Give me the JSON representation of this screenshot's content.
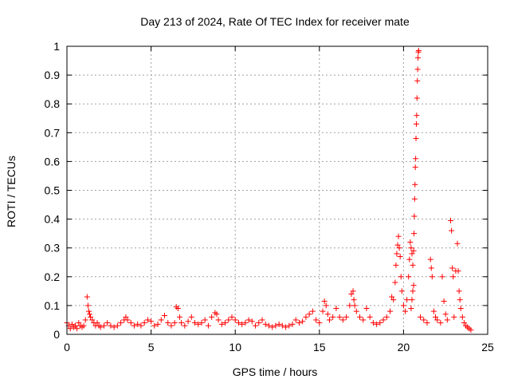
{
  "chart_data": {
    "type": "scatter",
    "title": "Day 213 of 2024, Rate Of TEC Index for receiver mate",
    "xlabel": "GPS time / hours",
    "ylabel": "ROTI / TECUs",
    "xlim": [
      0,
      25
    ],
    "ylim": [
      0,
      1
    ],
    "xticks": [
      0,
      5,
      10,
      15,
      20,
      25
    ],
    "yticks": [
      0,
      0.1,
      0.2,
      0.3,
      0.4,
      0.5,
      0.6,
      0.7,
      0.8,
      0.9,
      1
    ],
    "xtick_labels": [
      "0",
      "5",
      "10",
      "15",
      "20",
      "25"
    ],
    "ytick_labels": [
      "0",
      "0.1",
      "0.2",
      "0.3",
      "0.4",
      "0.5",
      "0.6",
      "0.7",
      "0.8",
      "0.9",
      "1"
    ],
    "grid": true,
    "marker": "+",
    "color": "#ff0000",
    "series": [
      {
        "name": "ROTI",
        "points": [
          [
            0.0,
            0.04
          ],
          [
            0.1,
            0.03
          ],
          [
            0.2,
            0.02
          ],
          [
            0.3,
            0.035
          ],
          [
            0.4,
            0.025
          ],
          [
            0.5,
            0.03
          ],
          [
            0.6,
            0.02
          ],
          [
            0.7,
            0.04
          ],
          [
            0.8,
            0.03
          ],
          [
            0.9,
            0.025
          ],
          [
            1.0,
            0.03
          ],
          [
            1.1,
            0.05
          ],
          [
            1.2,
            0.13
          ],
          [
            1.25,
            0.1
          ],
          [
            1.3,
            0.08
          ],
          [
            1.35,
            0.07
          ],
          [
            1.4,
            0.06
          ],
          [
            1.5,
            0.05
          ],
          [
            1.6,
            0.04
          ],
          [
            1.7,
            0.03
          ],
          [
            1.8,
            0.04
          ],
          [
            1.9,
            0.03
          ],
          [
            2.0,
            0.025
          ],
          [
            2.2,
            0.03
          ],
          [
            2.4,
            0.04
          ],
          [
            2.6,
            0.03
          ],
          [
            2.8,
            0.025
          ],
          [
            3.0,
            0.03
          ],
          [
            3.2,
            0.04
          ],
          [
            3.4,
            0.05
          ],
          [
            3.5,
            0.06
          ],
          [
            3.6,
            0.05
          ],
          [
            3.8,
            0.04
          ],
          [
            4.0,
            0.03
          ],
          [
            4.2,
            0.035
          ],
          [
            4.4,
            0.03
          ],
          [
            4.6,
            0.04
          ],
          [
            4.8,
            0.05
          ],
          [
            5.0,
            0.045
          ],
          [
            5.2,
            0.03
          ],
          [
            5.4,
            0.035
          ],
          [
            5.6,
            0.05
          ],
          [
            5.8,
            0.065
          ],
          [
            6.0,
            0.04
          ],
          [
            6.2,
            0.03
          ],
          [
            6.4,
            0.04
          ],
          [
            6.5,
            0.095
          ],
          [
            6.6,
            0.09
          ],
          [
            6.7,
            0.06
          ],
          [
            6.8,
            0.04
          ],
          [
            7.0,
            0.03
          ],
          [
            7.2,
            0.045
          ],
          [
            7.4,
            0.06
          ],
          [
            7.6,
            0.04
          ],
          [
            7.8,
            0.035
          ],
          [
            8.0,
            0.04
          ],
          [
            8.2,
            0.05
          ],
          [
            8.4,
            0.03
          ],
          [
            8.6,
            0.06
          ],
          [
            8.8,
            0.075
          ],
          [
            8.9,
            0.07
          ],
          [
            9.0,
            0.05
          ],
          [
            9.2,
            0.035
          ],
          [
            9.4,
            0.04
          ],
          [
            9.6,
            0.05
          ],
          [
            9.8,
            0.06
          ],
          [
            10.0,
            0.05
          ],
          [
            10.2,
            0.04
          ],
          [
            10.4,
            0.035
          ],
          [
            10.6,
            0.04
          ],
          [
            10.8,
            0.05
          ],
          [
            11.0,
            0.045
          ],
          [
            11.2,
            0.03
          ],
          [
            11.4,
            0.04
          ],
          [
            11.6,
            0.05
          ],
          [
            11.8,
            0.035
          ],
          [
            12.0,
            0.03
          ],
          [
            12.2,
            0.025
          ],
          [
            12.4,
            0.03
          ],
          [
            12.6,
            0.035
          ],
          [
            12.8,
            0.03
          ],
          [
            13.0,
            0.025
          ],
          [
            13.2,
            0.03
          ],
          [
            13.4,
            0.035
          ],
          [
            13.6,
            0.05
          ],
          [
            13.8,
            0.04
          ],
          [
            14.0,
            0.045
          ],
          [
            14.2,
            0.06
          ],
          [
            14.4,
            0.07
          ],
          [
            14.6,
            0.08
          ],
          [
            14.8,
            0.05
          ],
          [
            15.0,
            0.04
          ],
          [
            15.2,
            0.08
          ],
          [
            15.3,
            0.115
          ],
          [
            15.4,
            0.1
          ],
          [
            15.5,
            0.07
          ],
          [
            15.6,
            0.05
          ],
          [
            15.8,
            0.06
          ],
          [
            16.0,
            0.09
          ],
          [
            16.2,
            0.06
          ],
          [
            16.4,
            0.05
          ],
          [
            16.6,
            0.06
          ],
          [
            16.8,
            0.1
          ],
          [
            16.9,
            0.14
          ],
          [
            17.0,
            0.15
          ],
          [
            17.05,
            0.12
          ],
          [
            17.1,
            0.1
          ],
          [
            17.2,
            0.08
          ],
          [
            17.4,
            0.06
          ],
          [
            17.6,
            0.05
          ],
          [
            17.8,
            0.09
          ],
          [
            18.0,
            0.06
          ],
          [
            18.2,
            0.04
          ],
          [
            18.4,
            0.035
          ],
          [
            18.6,
            0.04
          ],
          [
            18.8,
            0.05
          ],
          [
            19.0,
            0.06
          ],
          [
            19.2,
            0.08
          ],
          [
            19.3,
            0.13
          ],
          [
            19.4,
            0.12
          ],
          [
            19.5,
            0.18
          ],
          [
            19.55,
            0.24
          ],
          [
            19.6,
            0.28
          ],
          [
            19.65,
            0.31
          ],
          [
            19.7,
            0.34
          ],
          [
            19.75,
            0.3
          ],
          [
            19.8,
            0.27
          ],
          [
            19.85,
            0.2
          ],
          [
            19.9,
            0.15
          ],
          [
            20.0,
            0.1
          ],
          [
            20.1,
            0.08
          ],
          [
            20.2,
            0.12
          ],
          [
            20.3,
            0.2
          ],
          [
            20.35,
            0.26
          ],
          [
            20.4,
            0.32
          ],
          [
            20.45,
            0.3
          ],
          [
            20.5,
            0.28
          ],
          [
            20.55,
            0.24
          ],
          [
            20.6,
            0.29
          ],
          [
            20.62,
            0.35
          ],
          [
            20.64,
            0.41
          ],
          [
            20.66,
            0.47
          ],
          [
            20.68,
            0.52
          ],
          [
            20.7,
            0.58
          ],
          [
            20.72,
            0.61
          ],
          [
            20.74,
            0.68
          ],
          [
            20.76,
            0.73
          ],
          [
            20.78,
            0.76
          ],
          [
            20.8,
            0.82
          ],
          [
            20.82,
            0.88
          ],
          [
            20.84,
            0.92
          ],
          [
            20.86,
            0.96
          ],
          [
            20.88,
            0.98
          ],
          [
            20.9,
            0.985
          ],
          [
            20.6,
            0.17
          ],
          [
            20.55,
            0.15
          ],
          [
            20.5,
            0.12
          ],
          [
            20.45,
            0.09
          ],
          [
            21.0,
            0.06
          ],
          [
            21.2,
            0.05
          ],
          [
            21.4,
            0.04
          ],
          [
            21.6,
            0.26
          ],
          [
            21.65,
            0.23
          ],
          [
            21.7,
            0.2
          ],
          [
            21.8,
            0.08
          ],
          [
            21.9,
            0.06
          ],
          [
            22.0,
            0.05
          ],
          [
            22.2,
            0.04
          ],
          [
            22.3,
            0.2
          ],
          [
            22.4,
            0.115
          ],
          [
            22.5,
            0.07
          ],
          [
            22.6,
            0.05
          ],
          [
            22.8,
            0.395
          ],
          [
            22.85,
            0.36
          ],
          [
            22.9,
            0.23
          ],
          [
            22.95,
            0.2
          ],
          [
            23.0,
            0.06
          ],
          [
            23.1,
            0.22
          ],
          [
            23.2,
            0.315
          ],
          [
            23.25,
            0.22
          ],
          [
            23.3,
            0.15
          ],
          [
            23.35,
            0.12
          ],
          [
            23.4,
            0.09
          ],
          [
            23.5,
            0.06
          ],
          [
            23.6,
            0.04
          ],
          [
            23.7,
            0.03
          ],
          [
            23.8,
            0.025
          ],
          [
            23.9,
            0.02
          ],
          [
            24.0,
            0.015
          ]
        ]
      }
    ]
  }
}
